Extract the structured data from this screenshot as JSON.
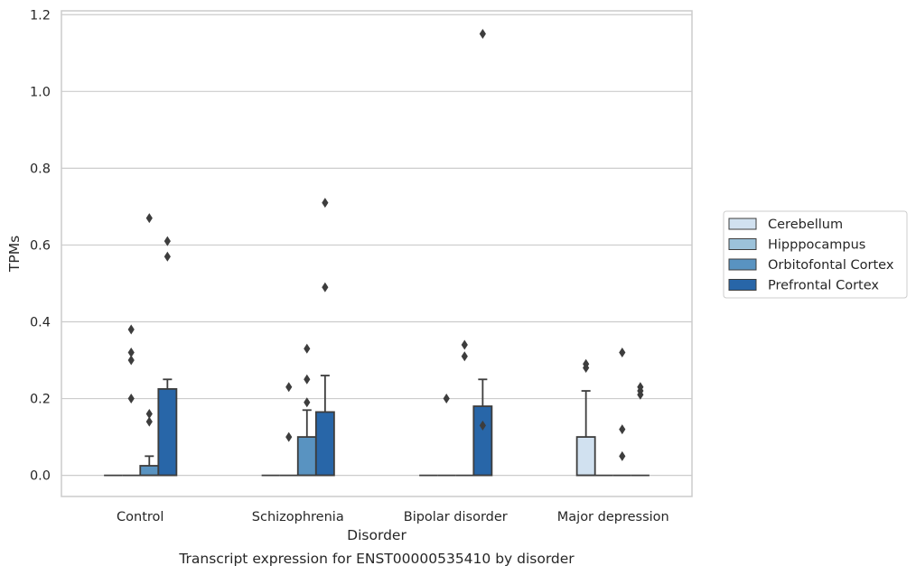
{
  "chart_data": {
    "type": "boxplot",
    "xlabel": "Disorder",
    "ylabel": "TPMs",
    "caption": "Transcript expression for ENST00000535410 by disorder",
    "ylim": [
      -0.055,
      1.21
    ],
    "yticks": [
      0.0,
      0.2,
      0.4,
      0.6,
      0.8,
      1.0,
      1.2
    ],
    "ytick_labels": [
      "0.0",
      "0.2",
      "0.4",
      "0.6",
      "0.8",
      "1.0",
      "1.2"
    ],
    "grid": "horizontal",
    "legend_position": "right",
    "categories": [
      "Control",
      "Schizophrenia",
      "Bipolar disorder",
      "Major depression"
    ],
    "series": [
      {
        "name": "Cerebellum",
        "color": "#d1e1f0",
        "boxes": [
          {
            "q1": 0,
            "median": 0,
            "q3": 0,
            "whisker_high": 0,
            "fliers": []
          },
          {
            "q1": 0,
            "median": 0,
            "q3": 0,
            "whisker_high": 0,
            "fliers": []
          },
          {
            "q1": 0,
            "median": 0,
            "q3": 0,
            "whisker_high": 0,
            "fliers": []
          },
          {
            "q1": 0,
            "median": 0,
            "q3": 0.1,
            "whisker_high": 0.22,
            "fliers": [
              0.28,
              0.29
            ]
          }
        ]
      },
      {
        "name": "Hipppocampus",
        "color": "#9cc2da",
        "boxes": [
          {
            "q1": 0,
            "median": 0,
            "q3": 0,
            "whisker_high": 0,
            "fliers": [
              0.2,
              0.3,
              0.32,
              0.38
            ]
          },
          {
            "q1": 0,
            "median": 0,
            "q3": 0,
            "whisker_high": 0,
            "fliers": [
              0.1,
              0.23
            ]
          },
          {
            "q1": 0,
            "median": 0,
            "q3": 0,
            "whisker_high": 0,
            "fliers": [
              0.2
            ]
          },
          {
            "q1": 0,
            "median": 0,
            "q3": 0,
            "whisker_high": 0,
            "fliers": []
          }
        ]
      },
      {
        "name": "Orbitofontal Cortex",
        "color": "#5993c1",
        "boxes": [
          {
            "q1": 0,
            "median": 0,
            "q3": 0.025,
            "whisker_high": 0.05,
            "fliers": [
              0.14,
              0.16,
              0.67
            ]
          },
          {
            "q1": 0,
            "median": 0,
            "q3": 0.1,
            "whisker_high": 0.17,
            "fliers": [
              0.19,
              0.25,
              0.33
            ]
          },
          {
            "q1": 0,
            "median": 0,
            "q3": 0,
            "whisker_high": 0,
            "fliers": [
              0.31,
              0.34
            ]
          },
          {
            "q1": 0,
            "median": 0,
            "q3": 0,
            "whisker_high": 0,
            "fliers": [
              0.05,
              0.12,
              0.32
            ]
          }
        ]
      },
      {
        "name": "Prefrontal Cortex",
        "color": "#2866a8",
        "boxes": [
          {
            "q1": 0,
            "median": 0,
            "q3": 0.225,
            "whisker_high": 0.25,
            "fliers": [
              0.57,
              0.61
            ]
          },
          {
            "q1": 0,
            "median": 0,
            "q3": 0.165,
            "whisker_high": 0.26,
            "fliers": [
              0.49,
              0.71
            ]
          },
          {
            "q1": 0,
            "median": 0,
            "q3": 0.18,
            "whisker_high": 0.25,
            "fliers": [
              0.13,
              1.15
            ]
          },
          {
            "q1": 0,
            "median": 0,
            "q3": 0,
            "whisker_high": 0,
            "fliers": [
              0.21,
              0.22,
              0.23
            ]
          }
        ]
      }
    ]
  }
}
